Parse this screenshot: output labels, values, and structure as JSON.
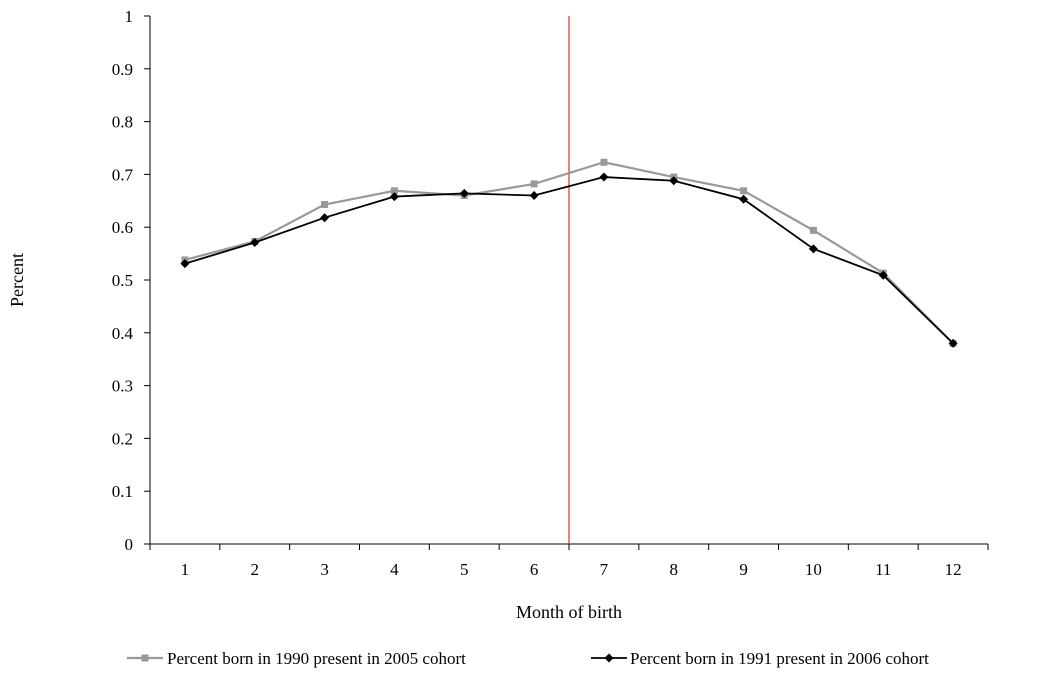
{
  "chart_data": {
    "type": "line",
    "title": "",
    "xlabel": "Month of birth",
    "ylabel": "Percent",
    "categories": [
      "1",
      "2",
      "3",
      "4",
      "5",
      "6",
      "7",
      "8",
      "9",
      "10",
      "11",
      "12"
    ],
    "ylim": [
      0,
      1
    ],
    "yticks": [
      "0",
      "0.1",
      "0.2",
      "0.3",
      "0.4",
      "0.5",
      "0.6",
      "0.7",
      "0.8",
      "0.9",
      "1"
    ],
    "grid": false,
    "legend_position": "bottom",
    "series": [
      {
        "name": "Percent born in 1990 present in 2005 cohort",
        "color": "#999999",
        "marker": "square",
        "values": [
          0.538,
          0.573,
          0.643,
          0.669,
          0.66,
          0.682,
          0.723,
          0.695,
          0.669,
          0.594,
          0.513,
          0.38
        ]
      },
      {
        "name": "Percent born in 1991 present in 2006 cohort",
        "color": "#000000",
        "marker": "diamond",
        "values": [
          0.531,
          0.571,
          0.618,
          0.658,
          0.664,
          0.66,
          0.695,
          0.688,
          0.653,
          0.559,
          0.509,
          0.38
        ]
      }
    ],
    "reference_line": {
      "orientation": "vertical",
      "between_categories": [
        "6",
        "7"
      ],
      "color": "#cc3333"
    }
  }
}
